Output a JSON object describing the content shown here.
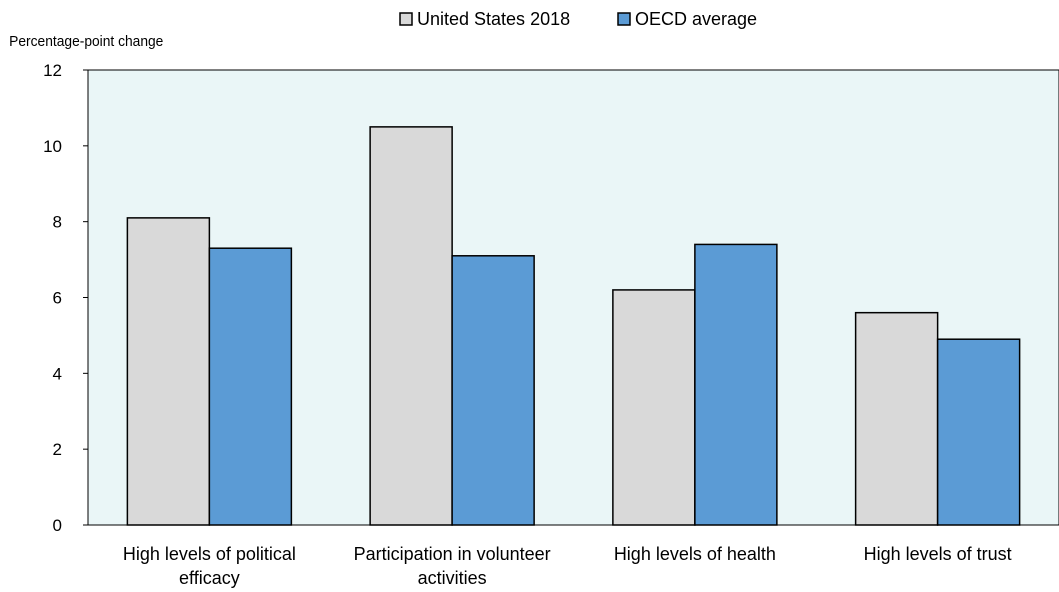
{
  "chart_data": {
    "type": "bar",
    "ylabel": "Percentage-point change",
    "ylim": [
      0,
      12
    ],
    "yticks": [
      0,
      2,
      4,
      6,
      8,
      10,
      12
    ],
    "categories": [
      [
        "High levels of political",
        "efficacy"
      ],
      [
        "Participation in volunteer",
        "activities"
      ],
      [
        "High levels of health"
      ],
      [
        "High levels of trust"
      ]
    ],
    "series": [
      {
        "name": "United States 2018",
        "values": [
          8.1,
          10.5,
          6.2,
          5.6
        ],
        "color": "#d9d9d9"
      },
      {
        "name": "OECD average",
        "values": [
          7.3,
          7.1,
          7.4,
          4.9
        ],
        "color": "#5b9bd5"
      }
    ],
    "plot_background": "#eaf6f7",
    "legend_position": "top-center",
    "grid": false
  }
}
